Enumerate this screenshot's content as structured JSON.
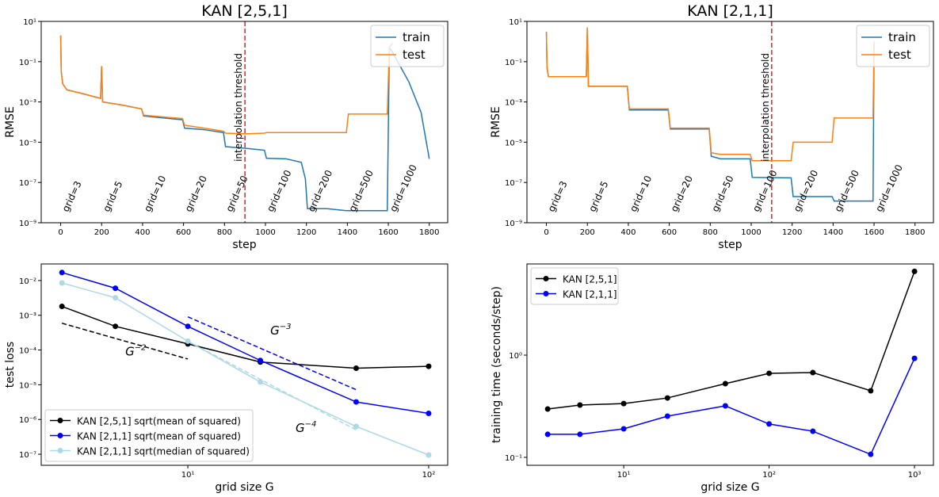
{
  "chart_data": [
    {
      "type": "line",
      "title": "KAN [2,5,1]",
      "xlabel": "step",
      "ylabel": "RMSE",
      "yscale": "log",
      "xlim": [
        -95,
        1890
      ],
      "ylim": [
        1e-09,
        10
      ],
      "xticks": [
        0,
        200,
        400,
        600,
        800,
        1000,
        1200,
        1400,
        1600,
        1800
      ],
      "yticks": [
        {
          "value": 10,
          "label": "10¹"
        },
        {
          "value": 0.1,
          "label": "10⁻¹"
        },
        {
          "value": 0.001,
          "label": "10⁻³"
        },
        {
          "value": 1e-05,
          "label": "10⁻⁵"
        },
        {
          "value": 1e-07,
          "label": "10⁻⁷"
        },
        {
          "value": 1e-09,
          "label": "10⁻⁹"
        }
      ],
      "legend": "upper right",
      "x": [
        0,
        3,
        10,
        30,
        100,
        195,
        200,
        205,
        300,
        395,
        405,
        500,
        595,
        605,
        700,
        795,
        805,
        900,
        995,
        1005,
        1100,
        1175,
        1195,
        1205,
        1300,
        1395,
        1405,
        1500,
        1595,
        1605,
        1620,
        1700,
        1760,
        1800
      ],
      "series": [
        {
          "name": "train",
          "color": "#1f77b4",
          "values": [
            2,
            0.03,
            0.008,
            0.004,
            0.0027,
            0.0015,
            0.06,
            0.001,
            0.0007,
            0.00045,
            0.0002,
            0.00016,
            0.00013,
            5e-05,
            4.2e-05,
            3e-05,
            6e-06,
            5e-06,
            4e-06,
            1.6e-06,
            1.5e-06,
            1e-06,
            1.5e-07,
            5e-09,
            5e-09,
            4e-09,
            4e-09,
            4e-09,
            4e-09,
            0.5,
            0.3,
            0.01,
            0.0003,
            1.5e-06
          ]
        },
        {
          "name": "test",
          "color": "#ff7f0e",
          "values": [
            2,
            0.03,
            0.008,
            0.004,
            0.0027,
            0.0015,
            0.06,
            0.001,
            0.0007,
            0.00045,
            0.00022,
            0.00018,
            0.00015,
            7e-05,
            5e-05,
            3.5e-05,
            2.8e-05,
            2.6e-05,
            2.8e-05,
            3e-05,
            3e-05,
            3e-05,
            3e-05,
            3e-05,
            3e-05,
            3e-05,
            0.00025,
            0.00025,
            0.00025,
            0.5,
            0.8,
            null,
            null,
            null
          ]
        }
      ],
      "vline": {
        "x": 900,
        "color": "#d62728",
        "label": "interpolation threshold"
      },
      "annotations": [
        {
          "text": "grid=3",
          "x": 35,
          "y": 3.2e-09
        },
        {
          "text": "grid=5",
          "x": 235,
          "y": 3.2e-09
        },
        {
          "text": "grid=10",
          "x": 435,
          "y": 3.2e-09
        },
        {
          "text": "grid=20",
          "x": 635,
          "y": 3.2e-09
        },
        {
          "text": "grid=50",
          "x": 835,
          "y": 3.2e-09
        },
        {
          "text": "grid=100",
          "x": 1035,
          "y": 3.2e-09
        },
        {
          "text": "grid=200",
          "x": 1235,
          "y": 3.2e-09
        },
        {
          "text": "grid=500",
          "x": 1435,
          "y": 3.2e-09
        },
        {
          "text": "grid=1000",
          "x": 1635,
          "y": 3.2e-09
        }
      ]
    },
    {
      "type": "line",
      "title": "KAN [2,1,1]",
      "xlabel": "step",
      "ylabel": "RMSE",
      "yscale": "log",
      "xlim": [
        -95,
        1890
      ],
      "ylim": [
        1e-09,
        10
      ],
      "xticks": [
        0,
        200,
        400,
        600,
        800,
        1000,
        1200,
        1400,
        1600,
        1800
      ],
      "yticks": [
        {
          "value": 10,
          "label": "10¹"
        },
        {
          "value": 0.1,
          "label": "10⁻¹"
        },
        {
          "value": 0.001,
          "label": "10⁻³"
        },
        {
          "value": 1e-05,
          "label": "10⁻⁵"
        },
        {
          "value": 1e-07,
          "label": "10⁻⁷"
        },
        {
          "value": 1e-09,
          "label": "10⁻⁹"
        }
      ],
      "legend": "upper right",
      "x": [
        0,
        3,
        10,
        195,
        200,
        205,
        395,
        405,
        595,
        605,
        795,
        805,
        850,
        995,
        1005,
        1195,
        1205,
        1395,
        1405,
        1595,
        1600
      ],
      "series": [
        {
          "name": "train",
          "color": "#1f77b4",
          "values": [
            3,
            0.05,
            0.018,
            0.018,
            5,
            0.006,
            0.006,
            0.0004,
            0.0004,
            4.5e-05,
            4.5e-05,
            2e-06,
            1.5e-06,
            1.5e-06,
            1.8e-07,
            1.7e-07,
            2e-08,
            2e-08,
            1.2e-08,
            1.2e-08,
            1
          ]
        },
        {
          "name": "test",
          "color": "#ff7f0e",
          "values": [
            3,
            0.05,
            0.018,
            0.018,
            5,
            0.006,
            0.006,
            0.00045,
            0.00045,
            5e-05,
            5e-05,
            3e-06,
            2.5e-06,
            2.5e-06,
            1.2e-06,
            1.2e-06,
            1e-05,
            1e-05,
            0.00016,
            0.00016,
            1
          ]
        }
      ],
      "vline": {
        "x": 1100,
        "color": "#d62728",
        "label": "interpolation threshold"
      },
      "annotations": [
        {
          "text": "grid=3",
          "x": 35,
          "y": 3.2e-09
        },
        {
          "text": "grid=5",
          "x": 235,
          "y": 3.2e-09
        },
        {
          "text": "grid=10",
          "x": 435,
          "y": 3.2e-09
        },
        {
          "text": "grid=20",
          "x": 635,
          "y": 3.2e-09
        },
        {
          "text": "grid=50",
          "x": 835,
          "y": 3.2e-09
        },
        {
          "text": "grid=100",
          "x": 1035,
          "y": 3.2e-09
        },
        {
          "text": "grid=200",
          "x": 1235,
          "y": 3.2e-09
        },
        {
          "text": "grid=500",
          "x": 1435,
          "y": 3.2e-09
        },
        {
          "text": "grid=1000",
          "x": 1635,
          "y": 3.2e-09
        }
      ]
    },
    {
      "type": "line",
      "xlabel": "grid size G",
      "ylabel": "test loss",
      "xscale": "log",
      "yscale": "log",
      "markers": true,
      "xlim": [
        2.46,
        120
      ],
      "ylim": [
        4.8e-08,
        0.03
      ],
      "xticks": [
        {
          "value": 10,
          "label": "10¹"
        },
        {
          "value": 100,
          "label": "10²"
        }
      ],
      "yticks": [
        {
          "value": 1e-07,
          "label": "10⁻⁷"
        },
        {
          "value": 1e-06,
          "label": "10⁻⁶"
        },
        {
          "value": 1e-05,
          "label": "10⁻⁵"
        },
        {
          "value": 0.0001,
          "label": "10⁻⁴"
        },
        {
          "value": 0.001,
          "label": "10⁻³"
        },
        {
          "value": 0.01,
          "label": "10⁻²"
        }
      ],
      "legend": "lower left",
      "x": [
        3,
        5,
        10,
        20,
        50,
        100
      ],
      "series": [
        {
          "name": "KAN [2,5,1] sqrt(mean of squared)",
          "color": "#000000",
          "values": [
            0.0018,
            0.00048,
            0.00015,
            4.5e-05,
            3e-05,
            3.4e-05
          ]
        },
        {
          "name": "KAN [2,1,1] sqrt(mean of squared)",
          "color": "#0000ff",
          "values": [
            0.017,
            0.006,
            0.00048,
            5e-05,
            3.2e-06,
            1.5e-06
          ]
        },
        {
          "name": "KAN [2,1,1] sqrt(median of squared)",
          "color": "#add8e6",
          "values": [
            0.0085,
            0.0032,
            0.00018,
            1.2e-05,
            6.3e-07,
            9.5e-08
          ]
        }
      ],
      "reference_lines": [
        {
          "x": [
            3,
            10
          ],
          "values": [
            0.00059,
            5.5e-05
          ],
          "color": "#000000",
          "label": "G",
          "exponent": "−2",
          "label_x": 5.5,
          "label_y": 7e-05
        },
        {
          "x": [
            10,
            50
          ],
          "values": [
            0.0009,
            7.2e-06
          ],
          "color": "#0000ff",
          "label": "G",
          "exponent": "−3",
          "label_x": 22,
          "label_y": 0.00028
        },
        {
          "x": [
            10,
            50
          ],
          "values": [
            0.00018,
            5e-07
          ],
          "color": "#add8e6",
          "label": "G",
          "exponent": "−4",
          "label_x": 28,
          "label_y": 4.4e-07
        }
      ]
    },
    {
      "type": "line",
      "xlabel": "grid size G",
      "ylabel": "training time (seconds/step)",
      "xscale": "log",
      "yscale": "log",
      "markers": true,
      "xlim": [
        2.16,
        1350
      ],
      "ylim": [
        0.0836,
        7.8
      ],
      "xticks": [
        {
          "value": 10,
          "label": "10¹"
        },
        {
          "value": 100,
          "label": "10²"
        },
        {
          "value": 1000,
          "label": "10³"
        }
      ],
      "yticks": [
        {
          "value": 0.1,
          "label": "10⁻¹"
        },
        {
          "value": 1,
          "label": "10⁰"
        }
      ],
      "legend": "upper left",
      "x": [
        3,
        5,
        10,
        20,
        50,
        100,
        200,
        500,
        1000
      ],
      "series": [
        {
          "name": "KAN [2,5,1]",
          "color": "#000000",
          "values": [
            0.297,
            0.325,
            0.336,
            0.381,
            0.526,
            0.664,
            0.675,
            0.448,
            6.6
          ]
        },
        {
          "name": "KAN [2,1,1]",
          "color": "#0000ff",
          "values": [
            0.168,
            0.168,
            0.19,
            0.253,
            0.319,
            0.212,
            0.18,
            0.107,
            0.93
          ]
        }
      ]
    }
  ]
}
